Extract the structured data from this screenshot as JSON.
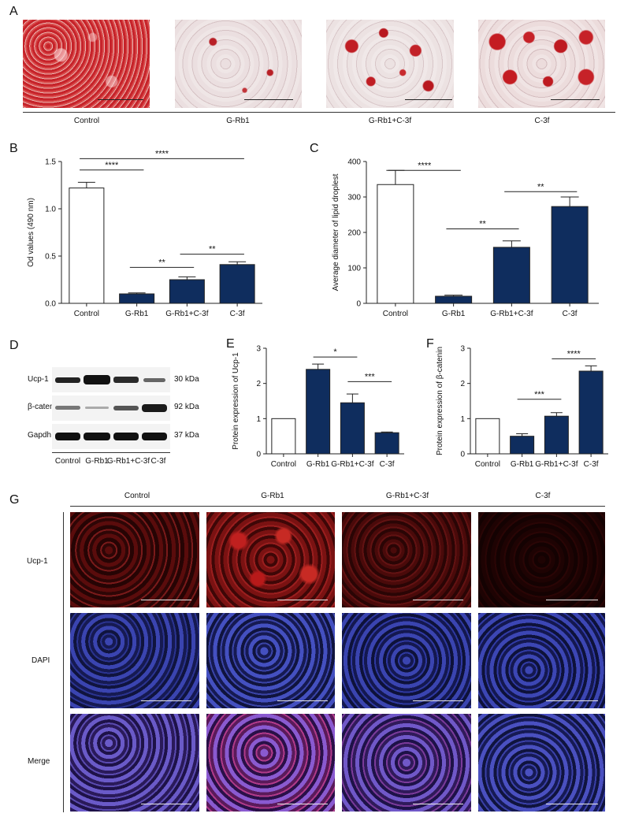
{
  "panel_a": {
    "letter": "A",
    "groups": [
      "Control",
      "G-Rb1",
      "G-Rb1+C-3f",
      "C-3f"
    ]
  },
  "panel_b": {
    "letter": "B"
  },
  "panel_c": {
    "letter": "C"
  },
  "panel_d": {
    "letter": "D",
    "bands": [
      {
        "name": "Ucp-1",
        "size": "30 kDa"
      },
      {
        "name": "β-catenin",
        "size": "92 kDa"
      },
      {
        "name": "Gapdh",
        "size": "37 kDa"
      }
    ],
    "lanes": [
      "Control",
      "G-Rb1",
      "G-Rb1+C-3f",
      "C-3f"
    ]
  },
  "panel_e": {
    "letter": "E"
  },
  "panel_f": {
    "letter": "F"
  },
  "panel_g": {
    "letter": "G",
    "columns": [
      "Control",
      "G-Rb1",
      "G-Rb1+C-3f",
      "C-3f"
    ],
    "rows": [
      "Ucp-1",
      "DAPI",
      "Merge"
    ]
  },
  "chart_data": [
    {
      "id": "B",
      "type": "bar",
      "categories": [
        "Control",
        "G-Rb1",
        "G-Rb1+C-3f",
        "C-3f"
      ],
      "values": [
        1.22,
        0.1,
        0.25,
        0.41
      ],
      "errors": [
        0.06,
        0.01,
        0.03,
        0.03
      ],
      "ylabel": "Od values (490 nm)",
      "ylim": [
        0,
        1.5
      ],
      "yticks": [
        "0.0",
        "0.5",
        "1.0",
        "1.5"
      ],
      "tick_values": [
        0,
        0.5,
        1.0,
        1.5
      ],
      "bar_colors": [
        "#ffffff",
        "#0f2d5e",
        "#0f2d5e",
        "#0f2d5e"
      ],
      "significance": [
        {
          "from": 0,
          "to": 1,
          "label": "****",
          "y": 1.41
        },
        {
          "from": 0,
          "to": 3,
          "label": "****",
          "y": 1.53
        },
        {
          "from": 1,
          "to": 2,
          "label": "**",
          "y": 0.38
        },
        {
          "from": 2,
          "to": 3,
          "label": "**",
          "y": 0.52
        }
      ]
    },
    {
      "id": "C",
      "type": "bar",
      "categories": [
        "Control",
        "G-Rb1",
        "G-Rb1+C-3f",
        "C-3f"
      ],
      "values": [
        335,
        20,
        158,
        273
      ],
      "errors": [
        40,
        3,
        18,
        27
      ],
      "ylabel": "Average diameter of lipid droplest",
      "ylim": [
        0,
        400
      ],
      "yticks": [
        "0",
        "100",
        "200",
        "300",
        "400"
      ],
      "tick_values": [
        0,
        100,
        200,
        300,
        400
      ],
      "bar_colors": [
        "#ffffff",
        "#0f2d5e",
        "#0f2d5e",
        "#0f2d5e"
      ],
      "significance": [
        {
          "from": 0,
          "to": 1,
          "label": "****",
          "y": 375
        },
        {
          "from": 1,
          "to": 2,
          "label": "**",
          "y": 210
        },
        {
          "from": 2,
          "to": 3,
          "label": "**",
          "y": 315
        }
      ]
    },
    {
      "id": "E",
      "type": "bar",
      "categories": [
        "Control",
        "G-Rb1",
        "G-Rb1+C-3f",
        "C-3f"
      ],
      "values": [
        1.0,
        2.4,
        1.45,
        0.6
      ],
      "errors": [
        0,
        0.15,
        0.25,
        0.02
      ],
      "ylabel": "Protein expression of Ucp-1",
      "ylim": [
        0,
        3
      ],
      "yticks": [
        "0",
        "1",
        "2",
        "3"
      ],
      "tick_values": [
        0,
        1,
        2,
        3
      ],
      "bar_colors": [
        "#ffffff",
        "#0f2d5e",
        "#0f2d5e",
        "#0f2d5e"
      ],
      "significance": [
        {
          "from": 1,
          "to": 2,
          "label": "*",
          "y": 2.75
        },
        {
          "from": 2,
          "to": 3,
          "label": "***",
          "y": 2.05
        }
      ]
    },
    {
      "id": "F",
      "type": "bar",
      "categories": [
        "Control",
        "G-Rb1",
        "G-Rb1+C-3f",
        "C-3f"
      ],
      "values": [
        1.0,
        0.5,
        1.07,
        2.35
      ],
      "errors": [
        0,
        0.07,
        0.1,
        0.15
      ],
      "ylabel": "Protein expression of β-catenin",
      "ylim": [
        0,
        3
      ],
      "yticks": [
        "0",
        "1",
        "2",
        "3"
      ],
      "tick_values": [
        0,
        1,
        2,
        3
      ],
      "bar_colors": [
        "#ffffff",
        "#0f2d5e",
        "#0f2d5e",
        "#0f2d5e"
      ],
      "significance": [
        {
          "from": 1,
          "to": 2,
          "label": "***",
          "y": 1.55
        },
        {
          "from": 2,
          "to": 3,
          "label": "****",
          "y": 2.7
        }
      ]
    }
  ]
}
